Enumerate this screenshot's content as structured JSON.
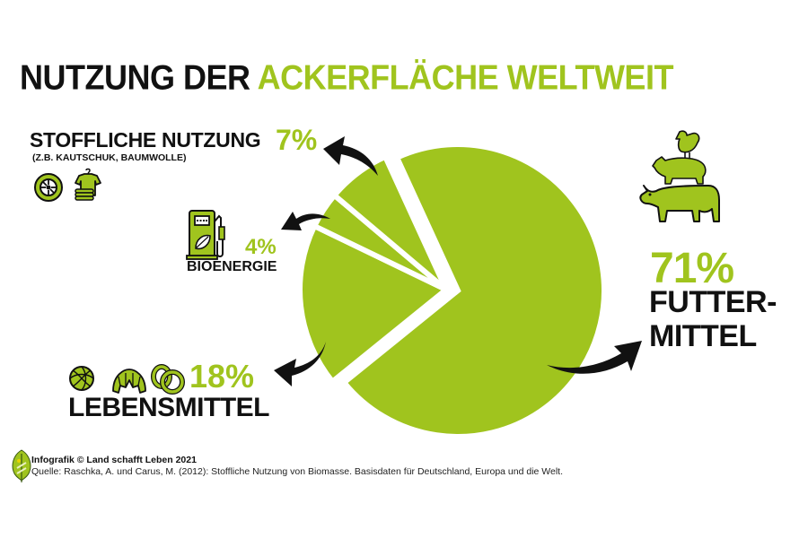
{
  "title": {
    "part_black": "NUTZUNG DER",
    "part_green": "ACKERFLÄCHE WELTWEIT"
  },
  "colors": {
    "green": "#A0C41E",
    "black": "#111111",
    "background": "#FFFFFF"
  },
  "labels": {
    "stoffliche": {
      "title": "STOFFLICHE NUTZUNG",
      "percent": "7%",
      "subtitle": "(Z.B. KAUTSCHUK, BAUMWOLLE)",
      "icons": [
        "tire-icon",
        "clothing-icon"
      ]
    },
    "bioenergie": {
      "title": "BIOENERGIE",
      "percent": "4%",
      "icons": [
        "fuel-pump-leaf-icon"
      ]
    },
    "lebensmittel": {
      "title": "LEBENSMITTEL",
      "percent": "18%",
      "icons": [
        "bread-roll-icon",
        "croissant-icon",
        "pretzel-icon"
      ]
    },
    "futtermittel": {
      "title_line1": "FUTTER-",
      "title_line2": "MITTEL",
      "percent": "71%",
      "icons": [
        "chicken-pig-cow-stack-icon"
      ]
    }
  },
  "footer": {
    "credit": "Infografik © Land schafft Leben 2021",
    "source": "Quelle: Raschka, A. und Carus, M. (2012): Stoffliche Nutzung von Biomasse. Basisdaten für Deutschland, Europa und die Welt."
  },
  "chart_data": {
    "type": "pie",
    "title": "Nutzung der Ackerfläche weltweit",
    "categories": [
      "Futtermittel",
      "Lebensmittel",
      "Bioenergie",
      "Stoffliche Nutzung"
    ],
    "values": [
      71,
      18,
      4,
      7
    ],
    "unit": "%",
    "colors": [
      "#A0C41E",
      "#A0C41E",
      "#A0C41E",
      "#A0C41E"
    ],
    "exploded": [
      "Lebensmittel",
      "Bioenergie",
      "Stoffliche Nutzung"
    ],
    "annotations": [
      "Stoffliche Nutzung (z.B. Kautschuk, Baumwolle) 7%",
      "Bioenergie 4%",
      "Lebensmittel 18%",
      "Futtermittel 71%"
    ],
    "legend": "none"
  }
}
